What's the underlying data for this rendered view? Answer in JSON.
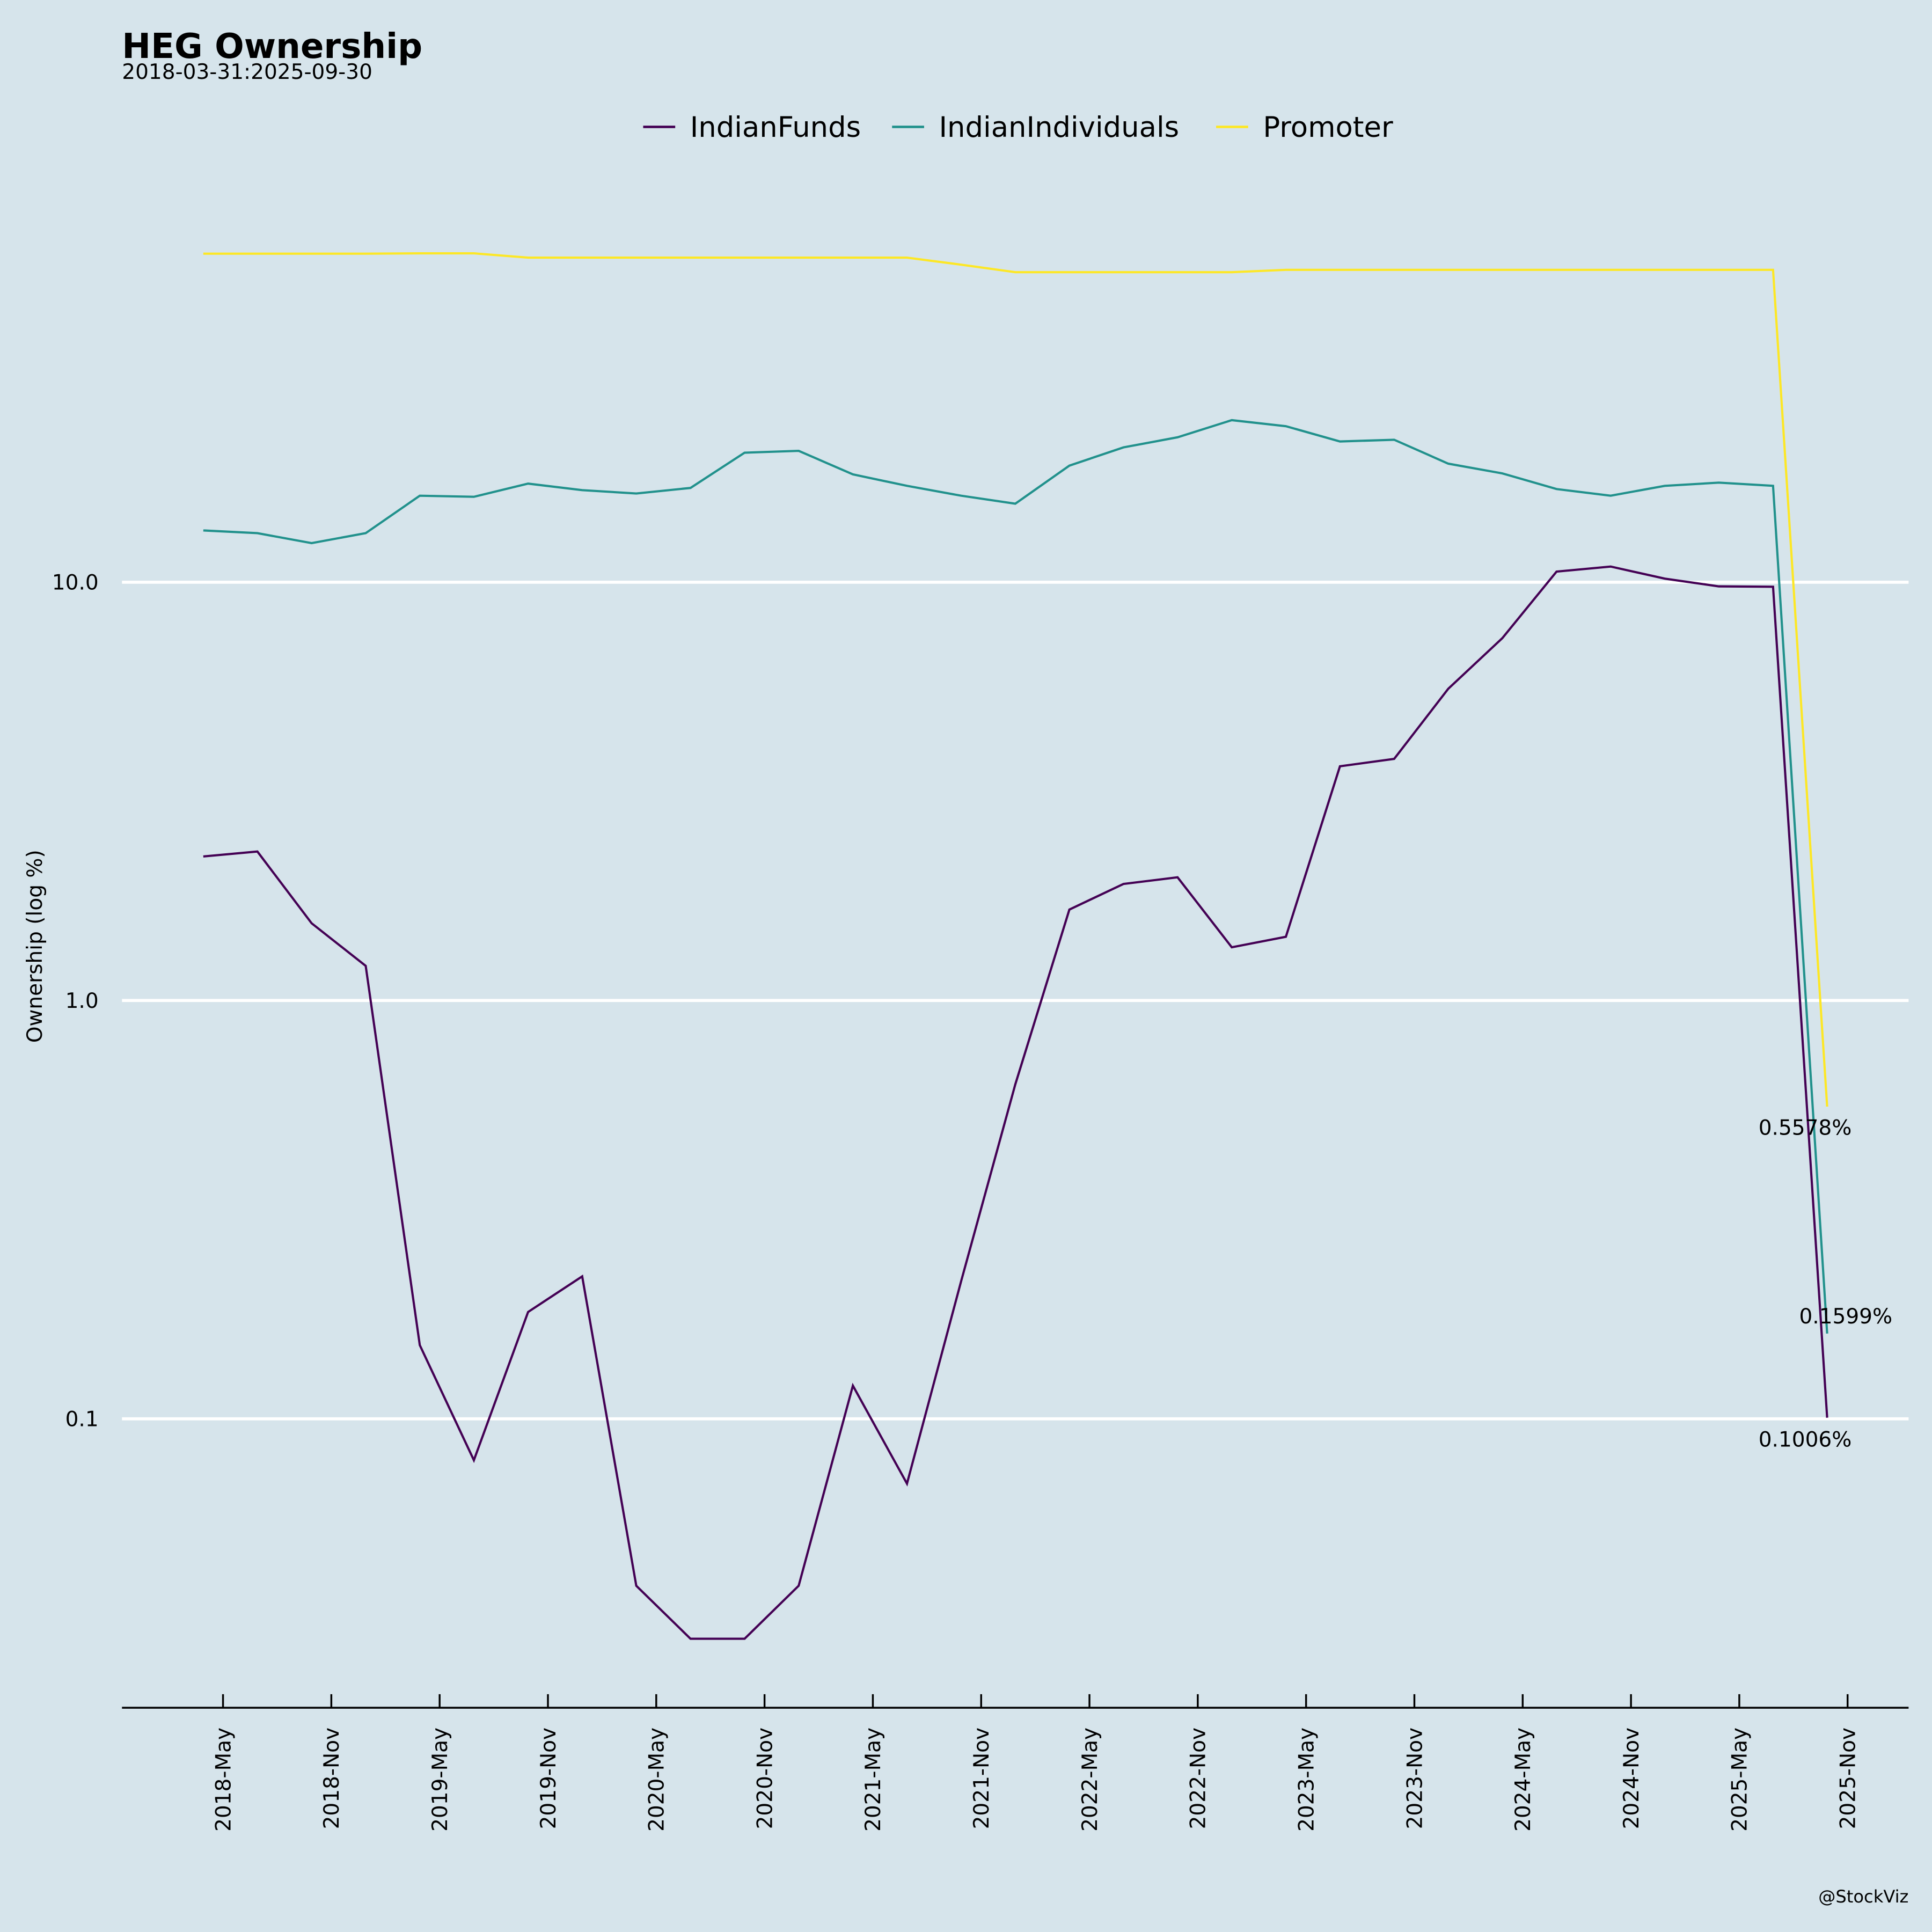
{
  "chart_data": {
    "type": "line",
    "title": "HEG Ownership",
    "subtitle": "2018-03-31:2025-09-30",
    "xlabel": "",
    "ylabel": "Ownership (log %)",
    "yscale": "log",
    "ylim": [
      0.02,
      120
    ],
    "yticks": [
      {
        "value": 0.1,
        "label": "0.1"
      },
      {
        "value": 1,
        "label": "1.0"
      },
      {
        "value": 10,
        "label": "10.0"
      }
    ],
    "grid": true,
    "legend_position": "top-center",
    "x_start": "2018-03-31",
    "x_step_months": 3,
    "xtick_labels": [
      "2018-May",
      "2018-Nov",
      "2019-May",
      "2019-Nov",
      "2020-May",
      "2020-Nov",
      "2021-May",
      "2021-Nov",
      "2022-May",
      "2022-Nov",
      "2023-May",
      "2023-Nov",
      "2024-May",
      "2024-Nov",
      "2025-May",
      "2025-Nov"
    ],
    "series": [
      {
        "name": "IndianFunds",
        "color": "#440154",
        "values": [
          2.21,
          2.27,
          1.53,
          1.21,
          0.15,
          0.0796,
          0.18,
          0.219,
          0.0399,
          0.0298,
          0.0298,
          0.0399,
          0.12,
          0.07,
          0.213,
          0.63,
          1.65,
          1.9,
          1.97,
          1.34,
          1.42,
          3.63,
          3.78,
          5.56,
          7.35,
          10.6,
          10.9,
          10.2,
          9.77,
          9.75,
          0.1006
        ],
        "end_label": "0.1006%"
      },
      {
        "name": "IndianIndividuals",
        "color": "#21918c",
        "values": [
          13.3,
          13.1,
          12.4,
          13.1,
          16.1,
          16.0,
          17.2,
          16.6,
          16.3,
          16.8,
          20.4,
          20.6,
          18.1,
          17.0,
          16.1,
          15.4,
          19.0,
          21.0,
          22.2,
          24.4,
          23.6,
          21.7,
          21.9,
          19.2,
          18.2,
          16.7,
          16.1,
          17.0,
          17.3,
          17.0,
          0.1599
        ],
        "end_label": "0.1599%"
      },
      {
        "name": "Promoter",
        "color": "#fde725",
        "values": [
          61.0,
          61.0,
          61.0,
          61.0,
          61.1,
          61.1,
          59.7,
          59.7,
          59.7,
          59.7,
          59.7,
          59.7,
          59.7,
          59.7,
          57.4,
          55.1,
          55.1,
          55.1,
          55.1,
          55.1,
          55.8,
          55.8,
          55.8,
          55.8,
          55.8,
          55.8,
          55.8,
          55.8,
          55.8,
          55.8,
          0.5578
        ],
        "end_label": "0.5578%"
      }
    ]
  },
  "watermark": "@StockViz"
}
